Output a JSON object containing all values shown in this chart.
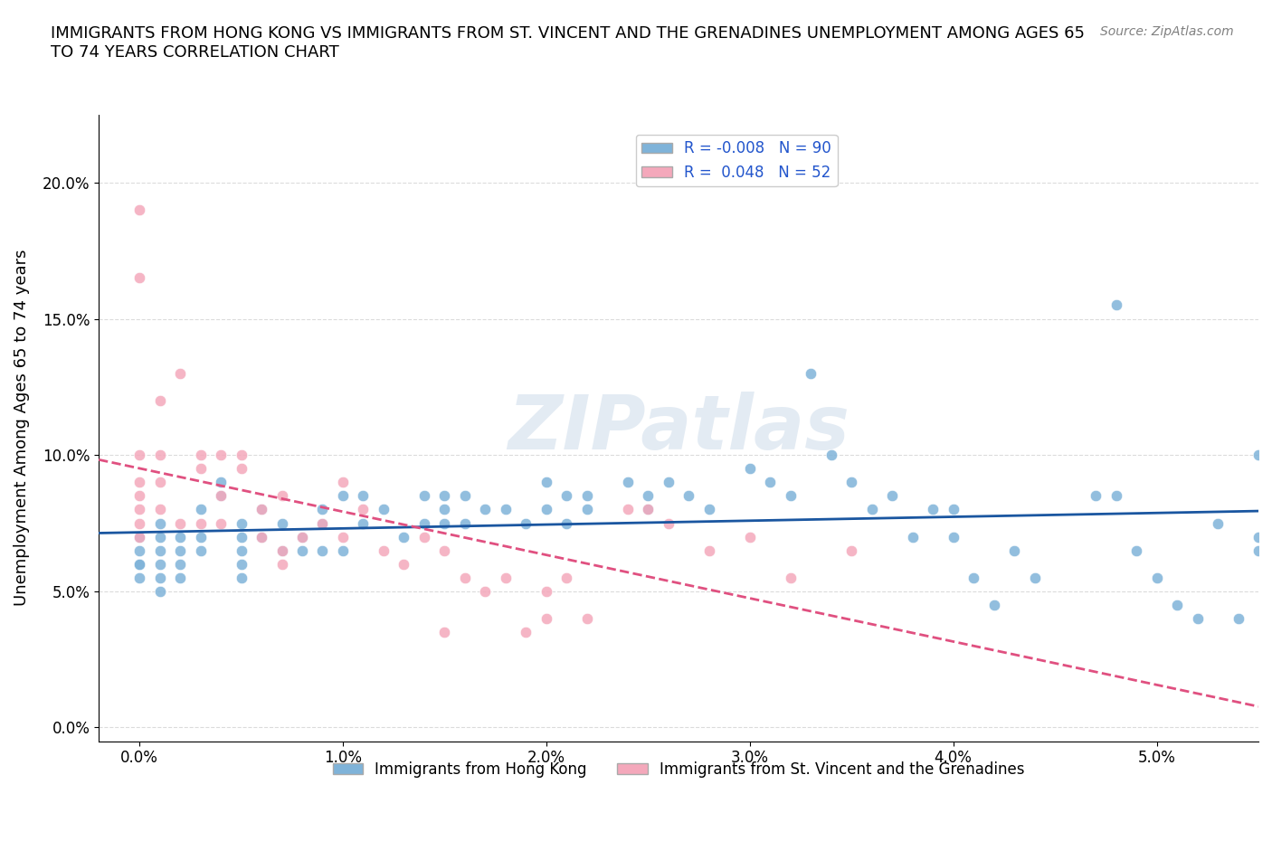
{
  "title": "IMMIGRANTS FROM HONG KONG VS IMMIGRANTS FROM ST. VINCENT AND THE GRENADINES UNEMPLOYMENT AMONG AGES 65\nTO 74 YEARS CORRELATION CHART",
  "source": "Source: ZipAtlas.com",
  "xlabel": "",
  "ylabel": "Unemployment Among Ages 65 to 74 years",
  "watermark": "ZIPatlas",
  "legend_entries": [
    {
      "label": "R = -0.008   N = 90",
      "color": "#aac4e0"
    },
    {
      "label": "R =  0.048   N = 52",
      "color": "#f4a8bb"
    }
  ],
  "hk_color": "#7fb3d9",
  "sv_color": "#f4a8bb",
  "trendline_hk_color": "#1a56a0",
  "trendline_sv_color": "#e05080",
  "xlim": [
    -0.002,
    0.055
  ],
  "ylim": [
    -0.005,
    0.225
  ],
  "xticks": [
    0.0,
    0.01,
    0.02,
    0.03,
    0.04,
    0.05
  ],
  "yticks": [
    0.0,
    0.05,
    0.1,
    0.15,
    0.2
  ],
  "xticklabels": [
    "0.0%",
    "1.0%",
    "2.0%",
    "3.0%",
    "4.0%",
    "5.0%"
  ],
  "yticklabels": [
    "0.0%",
    "5.0%",
    "10.0%",
    "15.0%",
    "20.0%"
  ],
  "hk_x": [
    0.0,
    0.0,
    0.0,
    0.0,
    0.0,
    0.001,
    0.001,
    0.001,
    0.001,
    0.001,
    0.001,
    0.002,
    0.002,
    0.002,
    0.002,
    0.003,
    0.003,
    0.003,
    0.004,
    0.004,
    0.005,
    0.005,
    0.005,
    0.005,
    0.005,
    0.006,
    0.006,
    0.007,
    0.007,
    0.008,
    0.008,
    0.009,
    0.009,
    0.009,
    0.01,
    0.01,
    0.011,
    0.011,
    0.012,
    0.013,
    0.014,
    0.014,
    0.015,
    0.015,
    0.015,
    0.016,
    0.016,
    0.017,
    0.018,
    0.019,
    0.02,
    0.02,
    0.021,
    0.021,
    0.022,
    0.022,
    0.024,
    0.025,
    0.025,
    0.026,
    0.027,
    0.028,
    0.03,
    0.031,
    0.032,
    0.033,
    0.034,
    0.035,
    0.036,
    0.037,
    0.038,
    0.039,
    0.04,
    0.04,
    0.041,
    0.042,
    0.043,
    0.044,
    0.047,
    0.048,
    0.049,
    0.05,
    0.051,
    0.052,
    0.053,
    0.054,
    0.055,
    0.055,
    0.048,
    0.055
  ],
  "hk_y": [
    0.06,
    0.07,
    0.065,
    0.06,
    0.055,
    0.075,
    0.07,
    0.065,
    0.06,
    0.055,
    0.05,
    0.07,
    0.065,
    0.06,
    0.055,
    0.08,
    0.07,
    0.065,
    0.09,
    0.085,
    0.075,
    0.07,
    0.065,
    0.06,
    0.055,
    0.08,
    0.07,
    0.075,
    0.065,
    0.07,
    0.065,
    0.075,
    0.08,
    0.065,
    0.085,
    0.065,
    0.085,
    0.075,
    0.08,
    0.07,
    0.085,
    0.075,
    0.08,
    0.085,
    0.075,
    0.085,
    0.075,
    0.08,
    0.08,
    0.075,
    0.09,
    0.08,
    0.085,
    0.075,
    0.085,
    0.08,
    0.09,
    0.085,
    0.08,
    0.09,
    0.085,
    0.08,
    0.095,
    0.09,
    0.085,
    0.13,
    0.1,
    0.09,
    0.08,
    0.085,
    0.07,
    0.08,
    0.08,
    0.07,
    0.055,
    0.045,
    0.065,
    0.055,
    0.085,
    0.085,
    0.065,
    0.055,
    0.045,
    0.04,
    0.075,
    0.04,
    0.1,
    0.07,
    0.155,
    0.065
  ],
  "sv_x": [
    0.0,
    0.0,
    0.0,
    0.0,
    0.0,
    0.0,
    0.0,
    0.0,
    0.001,
    0.001,
    0.001,
    0.001,
    0.002,
    0.002,
    0.003,
    0.003,
    0.003,
    0.004,
    0.004,
    0.004,
    0.005,
    0.005,
    0.006,
    0.006,
    0.007,
    0.007,
    0.007,
    0.008,
    0.009,
    0.01,
    0.01,
    0.011,
    0.012,
    0.013,
    0.014,
    0.015,
    0.015,
    0.016,
    0.017,
    0.018,
    0.019,
    0.02,
    0.02,
    0.021,
    0.022,
    0.024,
    0.025,
    0.026,
    0.028,
    0.03,
    0.032,
    0.035
  ],
  "sv_y": [
    0.19,
    0.165,
    0.1,
    0.09,
    0.085,
    0.08,
    0.075,
    0.07,
    0.12,
    0.1,
    0.09,
    0.08,
    0.13,
    0.075,
    0.1,
    0.095,
    0.075,
    0.1,
    0.085,
    0.075,
    0.1,
    0.095,
    0.08,
    0.07,
    0.085,
    0.065,
    0.06,
    0.07,
    0.075,
    0.09,
    0.07,
    0.08,
    0.065,
    0.06,
    0.07,
    0.065,
    0.035,
    0.055,
    0.05,
    0.055,
    0.035,
    0.05,
    0.04,
    0.055,
    0.04,
    0.08,
    0.08,
    0.075,
    0.065,
    0.07,
    0.055,
    0.065
  ],
  "background_color": "#ffffff",
  "grid_color": "#cccccc"
}
